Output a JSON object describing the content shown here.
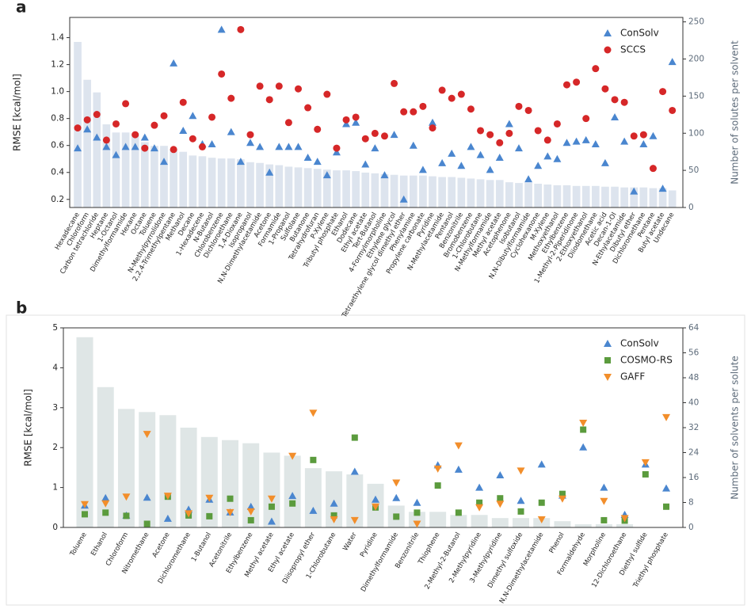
{
  "chart_data": [
    {
      "type": "combo",
      "label": "a",
      "y_label": "RMSE [kcal/mol]",
      "y2_label": "Number of solutes per solvent",
      "legend": "upper right",
      "ylim": [
        0.14,
        1.55
      ],
      "yticks": [
        0.2,
        0.4,
        0.6,
        0.8,
        {
          "value": 1.0,
          "label": "1.0"
        },
        1.2,
        1.4
      ],
      "y2lim": [
        0,
        256
      ],
      "y2ticks": [
        0,
        50,
        100,
        150,
        200,
        250
      ],
      "categories": [
        "Hexadecane",
        "Chloroform",
        "Carbon tetrachloride",
        "Heptane",
        "1-Octanol",
        "Dimethylformamide",
        "Hexane",
        "Octane",
        "Toluene",
        "N-Methylpyrrolidone",
        "2,2,4-Trimethylpentane",
        "Methanol",
        "Decane",
        "1-Hexadecene",
        "N-Butanol",
        "Chlorobenzene",
        "Dichloroethane",
        "1,4-Dioxane",
        "Isopropanol",
        "N,N-Dimethylacetamide",
        "Acetone",
        "Formamide",
        "1-Propanol",
        "Sulfolane",
        "Butanone",
        "Tetrahydrofuran",
        "P-Xylene",
        "Tributyl phosphate",
        "Ethanol",
        "Dodecane",
        "Ethyl acetate",
        "Tert-Butanol",
        "4-Formylmorpholine",
        "Ethylene glycol",
        "Tetraethylene glycol dimethyl ether",
        "Phenylamine",
        "Propylene carbonate",
        "Pyridine",
        "N-Methylacetamide",
        "Pentanol",
        "Benzonitrile",
        "Bromobenzene",
        "1-Chlorobutane",
        "N-Methylformamide",
        "Methyl acetate",
        "Acetophenone",
        "Isobutanol",
        "N,N-Dibutylformamide",
        "Cyclohexanone",
        "M-Xylene",
        "Methoxyethanol",
        "Ethylbenzene",
        "1-Methyl-2-Piperidinone",
        "2-Ethoxyethanol",
        "Diiodomethane",
        "Acetic acid",
        "Decan-1-Ol",
        "N-Ethylacetamide",
        "Dibutyl ether",
        "Dichloromethane",
        "Pentane",
        "Butyl acetate",
        "Undecane"
      ],
      "bars": {
        "axis": "y2",
        "color": "#dde4ee",
        "values": [
          223,
          172,
          155,
          112,
          101,
          101,
          99,
          88,
          83,
          83,
          78,
          75,
          70,
          69,
          67,
          66,
          66,
          65,
          61,
          60,
          58,
          57,
          55,
          54,
          53,
          52,
          51,
          50,
          50,
          49,
          47,
          46,
          45,
          44,
          43,
          43,
          43,
          42,
          41,
          41,
          40,
          39,
          38,
          37,
          37,
          34,
          33,
          33,
          32,
          31,
          30,
          30,
          29,
          29,
          29,
          28,
          28,
          27,
          27,
          27,
          26,
          26,
          23
        ]
      },
      "series": [
        {
          "name": "ConSolv",
          "color": "#4a86cf",
          "marker": "triangle",
          "values": [
            0.58,
            0.72,
            0.66,
            0.59,
            0.53,
            0.59,
            0.59,
            0.66,
            0.58,
            0.48,
            1.21,
            0.71,
            0.82,
            0.61,
            0.61,
            1.46,
            0.7,
            0.48,
            0.62,
            0.59,
            0.4,
            0.59,
            0.59,
            0.59,
            0.51,
            0.48,
            0.38,
            0.55,
            0.76,
            0.77,
            0.46,
            0.58,
            0.38,
            0.68,
            0.2,
            0.6,
            0.42,
            0.77,
            0.47,
            0.54,
            0.45,
            0.59,
            0.53,
            0.42,
            0.51,
            0.76,
            0.58,
            0.35,
            0.45,
            0.52,
            0.5,
            0.62,
            0.63,
            0.64,
            0.61,
            0.47,
            0.81,
            0.63,
            0.26,
            0.61,
            0.67,
            0.28,
            1.22
          ]
        },
        {
          "name": "SCCS",
          "color": "#d62728",
          "marker": "circle",
          "values": [
            0.73,
            0.79,
            0.83,
            0.64,
            0.76,
            0.91,
            0.68,
            0.58,
            0.75,
            0.82,
            0.57,
            0.92,
            0.65,
            0.59,
            0.81,
            1.13,
            0.95,
            1.46,
            0.68,
            1.04,
            0.94,
            1.04,
            0.77,
            1.02,
            0.88,
            0.72,
            0.98,
            0.58,
            0.79,
            0.81,
            0.65,
            0.69,
            0.67,
            1.06,
            0.85,
            0.85,
            0.89,
            0.73,
            1.01,
            0.95,
            0.98,
            0.87,
            0.71,
            0.68,
            0.62,
            0.69,
            0.89,
            0.86,
            0.71,
            0.64,
            0.76,
            1.05,
            1.07,
            0.8,
            1.17,
            1.02,
            0.94,
            0.92,
            0.67,
            0.68,
            0.43,
            1.0,
            0.86
          ]
        }
      ]
    },
    {
      "type": "combo",
      "label": "b",
      "y_label": "RMSE [kcal/mol]",
      "y2_label": "Number of solvents per solute",
      "legend": "upper right",
      "ylim": [
        0,
        5
      ],
      "yticks": [
        0,
        1,
        2,
        3,
        4,
        5
      ],
      "y2lim": [
        0,
        64
      ],
      "y2ticks": [
        0,
        8,
        16,
        24,
        32,
        40,
        48,
        56,
        64
      ],
      "categories": [
        "Toluene",
        "Ethanol",
        "Chloroform",
        "Nitromethane",
        "Acetone",
        "Dichloromethane",
        "1-Butanol",
        "Acetonitrile",
        "Ethylbenzene",
        "Methyl acetate",
        "Ethyl acetate",
        "Diisopropyl ether",
        "1-Chlorobutane",
        "Water",
        "Pyridine",
        "Dimethylformamide",
        "Benzonitrile",
        "Thiophene",
        "2-Methyl-2-Butanol",
        "2-Methylpyridine",
        "3-Methylpyridine",
        "Dimethyl sulfoxide",
        "N,N-Dimethylacetamide",
        "Phenol",
        "Formaldehyde",
        "Morpholine",
        "12-Dichloroethane",
        "Diethyl sulfide",
        "Triethyl phosphate"
      ],
      "bars": {
        "axis": "y2",
        "color": "#dfe6e6",
        "values": [
          61,
          45,
          38,
          37,
          36,
          32,
          29,
          28,
          27,
          24,
          23,
          19,
          18,
          17,
          14,
          7,
          5,
          5,
          4,
          4,
          3,
          3,
          3,
          2,
          1,
          1,
          1,
          0,
          0
        ]
      },
      "series": [
        {
          "name": "ConSolv",
          "color": "#4a86cf",
          "marker": "triangle",
          "values": [
            0.55,
            0.74,
            0.3,
            0.75,
            0.22,
            0.45,
            0.7,
            0.38,
            0.52,
            0.15,
            0.79,
            0.42,
            0.6,
            1.4,
            0.7,
            0.74,
            0.62,
            1.56,
            1.45,
            1.0,
            1.31,
            0.67,
            1.58,
            0.8,
            2.01,
            1.0,
            0.32,
            1.58,
            0.98
          ]
        },
        {
          "name": "COSMO-RS",
          "color": "#5b9b3d",
          "marker": "square",
          "values": [
            0.33,
            0.37,
            0.29,
            0.09,
            0.77,
            0.3,
            0.28,
            0.72,
            0.18,
            0.52,
            0.6,
            1.69,
            0.3,
            2.25,
            0.5,
            0.27,
            0.37,
            1.05,
            0.37,
            0.62,
            0.73,
            0.4,
            0.62,
            0.84,
            2.45,
            0.18,
            0.17,
            1.33,
            0.52
          ]
        },
        {
          "name": "GAFF",
          "color": "#f28e2b",
          "marker": "triangle-down",
          "values": [
            0.58,
            0.6,
            0.77,
            2.34,
            0.79,
            0.35,
            0.74,
            0.38,
            0.4,
            0.72,
            1.79,
            2.87,
            0.2,
            0.18,
            0.52,
            1.12,
            0.09,
            1.47,
            2.05,
            0.5,
            0.59,
            1.42,
            0.2,
            0.72,
            2.62,
            0.66,
            0.23,
            1.63,
            2.76
          ]
        }
      ]
    }
  ]
}
